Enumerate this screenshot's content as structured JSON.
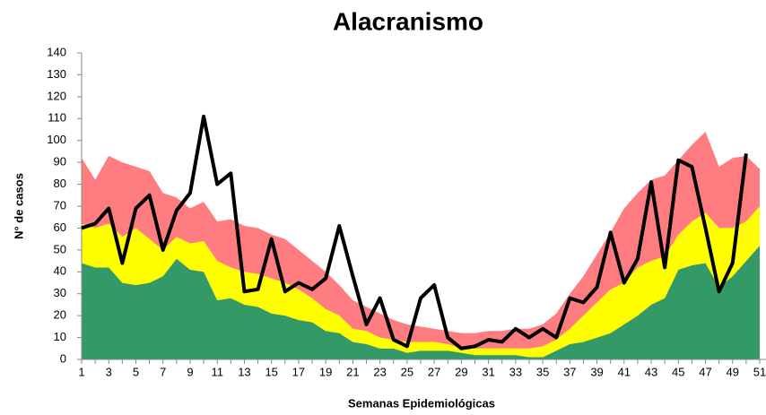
{
  "chart_data": {
    "type": "stacked-area-line",
    "title": "Alacranismo",
    "y_label": "N° de casos",
    "x_label": "Semanas Epidemiológicas",
    "categories": [
      1,
      null,
      3,
      null,
      5,
      null,
      7,
      null,
      9,
      null,
      11,
      null,
      13,
      null,
      15,
      null,
      17,
      null,
      19,
      null,
      21,
      null,
      23,
      null,
      25,
      null,
      27,
      null,
      29,
      null,
      31,
      null,
      33,
      null,
      35,
      null,
      37,
      null,
      39,
      null,
      41,
      null,
      43,
      null,
      45,
      null,
      47,
      null,
      49,
      null,
      51
    ],
    "ylim": [
      0,
      140
    ],
    "yticks": [
      0,
      10,
      20,
      30,
      40,
      50,
      60,
      70,
      80,
      90,
      100,
      110,
      120,
      130,
      140
    ],
    "series": [
      {
        "kind": "area",
        "color": "#339966",
        "values": [
          44,
          42,
          42,
          35,
          34,
          35,
          38,
          46,
          41,
          40,
          27,
          28,
          25,
          24,
          21,
          20,
          18,
          17,
          13,
          12,
          8,
          7,
          5,
          5,
          3,
          4,
          4,
          4,
          3,
          2,
          2,
          2,
          2,
          1,
          1,
          4,
          7,
          8,
          10,
          12,
          16,
          20,
          25,
          28,
          41,
          43,
          44,
          33,
          38,
          45,
          52
        ]
      },
      {
        "kind": "area",
        "color": "#ffff00",
        "values": [
          18,
          18,
          20,
          21,
          26,
          20,
          12,
          10,
          12,
          14,
          18,
          14,
          15,
          15,
          16,
          15,
          14,
          11,
          10,
          8,
          6,
          6,
          5,
          4,
          5,
          4,
          4,
          3,
          2,
          3,
          3,
          3,
          3,
          4,
          5,
          5,
          7,
          12,
          16,
          20,
          19,
          22,
          20,
          19,
          16,
          20,
          23,
          27,
          22,
          18,
          18
        ]
      },
      {
        "kind": "area",
        "color": "#ff7c80",
        "values": [
          30,
          22,
          31,
          34,
          28,
          31,
          26,
          18,
          16,
          18,
          18,
          22,
          21,
          21,
          20,
          20,
          18,
          17,
          17,
          14,
          13,
          11,
          11,
          9,
          8,
          7,
          6,
          6,
          7,
          7,
          8,
          8,
          9,
          9,
          10,
          12,
          16,
          18,
          22,
          26,
          34,
          34,
          37,
          37,
          34,
          35,
          37,
          28,
          32,
          30,
          17
        ]
      },
      {
        "kind": "line",
        "color": "#000000",
        "values": [
          60,
          62,
          69,
          44,
          69,
          75,
          50,
          68,
          76,
          111,
          80,
          85,
          31,
          32,
          55,
          31,
          35,
          32,
          37,
          61,
          38,
          16,
          28,
          9,
          6,
          28,
          34,
          10,
          5,
          6,
          9,
          8,
          14,
          10,
          14,
          10,
          28,
          26,
          33,
          58,
          35,
          46,
          81,
          42,
          91,
          88,
          60,
          31,
          44,
          94,
          null
        ]
      }
    ]
  }
}
